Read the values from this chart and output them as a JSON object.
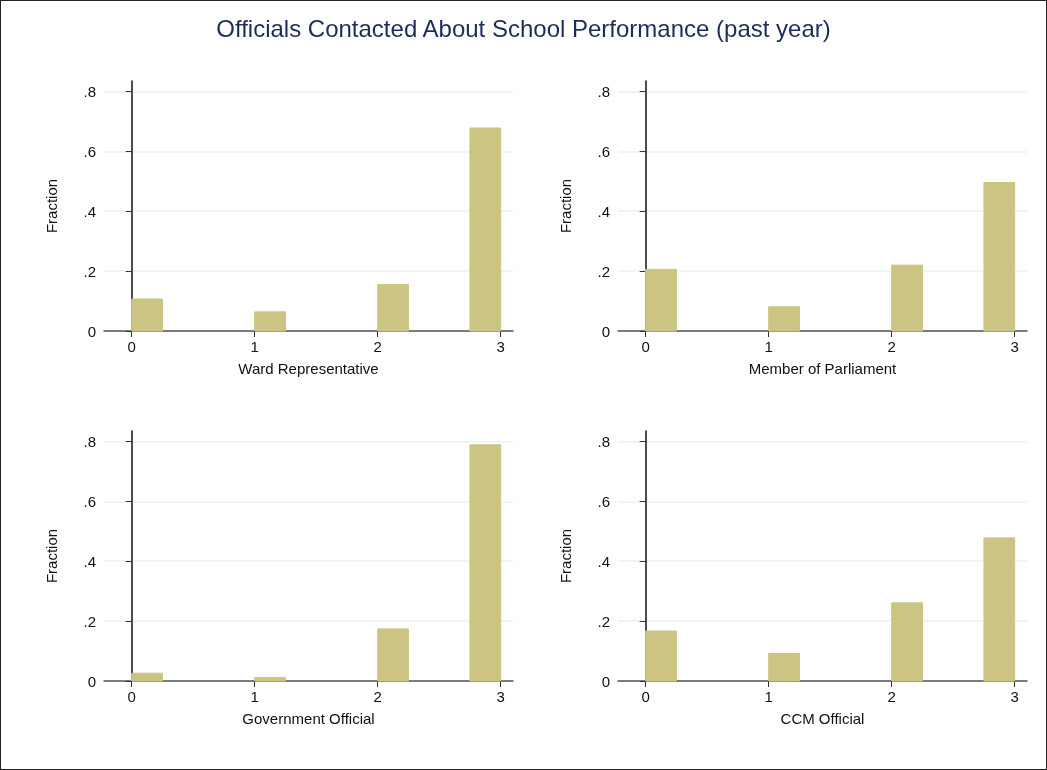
{
  "chart_data": [
    {
      "type": "histogram",
      "title": "Officials Contacted About School Performance (past year)",
      "xlabel": "Ward Representative",
      "ylabel": "Fraction",
      "bins": [
        0,
        0.25,
        0.5,
        0.75,
        1,
        1.25,
        1.5,
        1.75,
        2,
        2.25,
        2.5,
        2.75,
        3
      ],
      "values": [
        0.107,
        0,
        0,
        0,
        0.064,
        0,
        0,
        0,
        0.155,
        0,
        0,
        0.678
      ],
      "color": "#cbc483",
      "xlim": [
        -0.225,
        3.1
      ],
      "xticks": [
        0,
        1,
        2,
        3
      ],
      "ylim": [
        0,
        0.835
      ],
      "yticks": [
        {
          "value": 0,
          "label": "0"
        },
        {
          "value": 0.2,
          "label": ".2"
        },
        {
          "value": 0.4,
          "label": ".4"
        },
        {
          "value": 0.6,
          "label": ".6"
        },
        {
          "value": 0.8,
          "label": ".8"
        }
      ],
      "grid": "y"
    },
    {
      "type": "histogram",
      "xlabel": "Member of Parliament",
      "ylabel": "Fraction",
      "bins": [
        0,
        0.25,
        0.5,
        0.75,
        1,
        1.25,
        1.5,
        1.75,
        2,
        2.25,
        2.5,
        2.75,
        3
      ],
      "values": [
        0.206,
        0,
        0,
        0,
        0.081,
        0,
        0,
        0,
        0.22,
        0,
        0,
        0.496
      ],
      "color": "#cbc483",
      "xlim": [
        -0.225,
        3.1
      ],
      "xticks": [
        0,
        1,
        2,
        3
      ],
      "ylim": [
        0,
        0.835
      ],
      "yticks": [
        {
          "value": 0,
          "label": "0"
        },
        {
          "value": 0.2,
          "label": ".2"
        },
        {
          "value": 0.4,
          "label": ".4"
        },
        {
          "value": 0.6,
          "label": ".6"
        },
        {
          "value": 0.8,
          "label": ".8"
        }
      ],
      "grid": "y"
    },
    {
      "type": "histogram",
      "xlabel": "Government Official",
      "ylabel": "Fraction",
      "bins": [
        0,
        0.25,
        0.5,
        0.75,
        1,
        1.25,
        1.5,
        1.75,
        2,
        2.25,
        2.5,
        2.75,
        3
      ],
      "values": [
        0.026,
        0,
        0,
        0,
        0.012,
        0,
        0,
        0,
        0.174,
        0,
        0,
        0.789
      ],
      "color": "#cbc483",
      "xlim": [
        -0.225,
        3.1
      ],
      "xticks": [
        0,
        1,
        2,
        3
      ],
      "ylim": [
        0,
        0.835
      ],
      "yticks": [
        {
          "value": 0,
          "label": "0"
        },
        {
          "value": 0.2,
          "label": ".2"
        },
        {
          "value": 0.4,
          "label": ".4"
        },
        {
          "value": 0.6,
          "label": ".6"
        },
        {
          "value": 0.8,
          "label": ".8"
        }
      ],
      "grid": "y"
    },
    {
      "type": "histogram",
      "xlabel": "CCM Official",
      "ylabel": "Fraction",
      "bins": [
        0,
        0.25,
        0.5,
        0.75,
        1,
        1.25,
        1.5,
        1.75,
        2,
        2.25,
        2.5,
        2.75,
        3
      ],
      "values": [
        0.167,
        0,
        0,
        0,
        0.092,
        0,
        0,
        0,
        0.261,
        0,
        0,
        0.478
      ],
      "color": "#cbc483",
      "xlim": [
        -0.225,
        3.1
      ],
      "xticks": [
        0,
        1,
        2,
        3
      ],
      "ylim": [
        0,
        0.835
      ],
      "yticks": [
        {
          "value": 0,
          "label": "0"
        },
        {
          "value": 0.2,
          "label": ".2"
        },
        {
          "value": 0.4,
          "label": ".4"
        },
        {
          "value": 0.6,
          "label": ".6"
        },
        {
          "value": 0.8,
          "label": ".8"
        }
      ],
      "grid": "y"
    }
  ]
}
